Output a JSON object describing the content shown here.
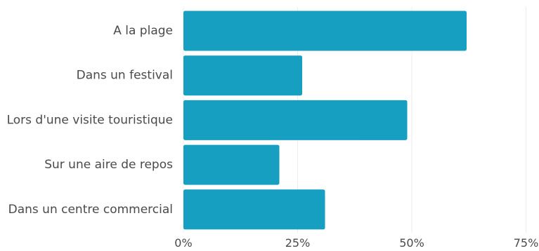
{
  "chart_data": {
    "type": "bar",
    "orientation": "horizontal",
    "categories": [
      "A la plage",
      "Dans un festival",
      "Lors d'une visite touristique",
      "Sur une aire de repos",
      "Dans un centre commercial"
    ],
    "values": [
      62,
      26,
      49,
      21,
      31
    ],
    "unit": "%",
    "xlim": [
      0,
      75
    ],
    "x_ticks": [
      0,
      25,
      50,
      75
    ],
    "x_tick_labels": [
      "0%",
      "25%",
      "50%",
      "75%"
    ],
    "title": "",
    "xlabel": "",
    "ylabel": "",
    "grid": "vertical",
    "legend": "none",
    "bar_color": "#179fc2"
  }
}
